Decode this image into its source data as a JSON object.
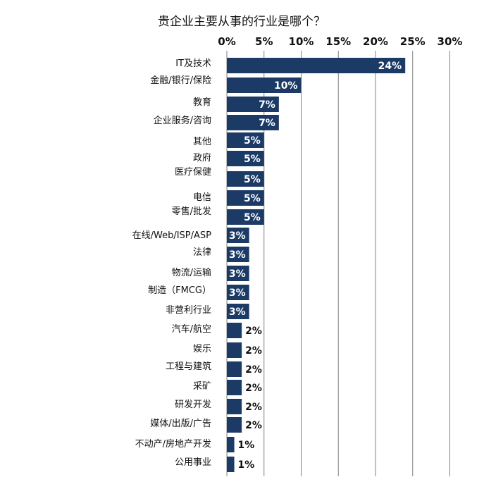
{
  "chart_data": {
    "type": "bar",
    "orientation": "horizontal",
    "title": "贵企业主要从事的行业是哪个？",
    "categories": [
      "IT及技术",
      "金融/银行/保险",
      "教育",
      "企业服务/咨询",
      "其他",
      "政府",
      "医疗保健",
      "电信",
      "零售/批发",
      "在线/Web/ISP/ASP",
      "法律",
      "物流/运输",
      "制造（FMCG）",
      "非营利行业",
      "汽车/航空",
      "娱乐",
      "工程与建筑",
      "采矿",
      "研发开发",
      "媒体/出版/广告",
      "不动产/房地产开发",
      "公用事业"
    ],
    "values": [
      24,
      10,
      7,
      7,
      5,
      5,
      5,
      5,
      5,
      3,
      3,
      3,
      3,
      3,
      2,
      2,
      2,
      2,
      2,
      2,
      1,
      1
    ],
    "data_labels": [
      "24%",
      "10%",
      "7%",
      "7%",
      "5%",
      "5%",
      "5%",
      "5%",
      "5%",
      "3%",
      "3%",
      "3%",
      "3%",
      "3%",
      "2%",
      "2%",
      "2%",
      "2%",
      "2%",
      "2%",
      "1%",
      "1%"
    ],
    "x_ticks": [
      "0%",
      "5%",
      "10%",
      "15%",
      "20%",
      "25%",
      "30%"
    ],
    "xlim": [
      0,
      30
    ],
    "x_axis_position": "top",
    "grid": true,
    "bar_color": "#1b3a66",
    "grid_color": "#808080"
  }
}
